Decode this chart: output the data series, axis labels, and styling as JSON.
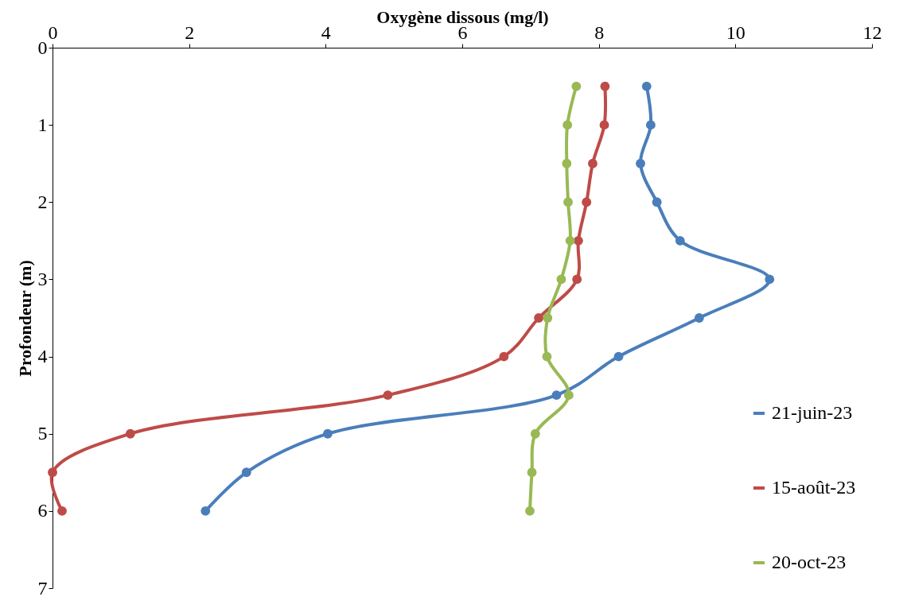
{
  "chart_data": {
    "type": "line",
    "xlabel": "Oxygène dissous (mg/l)",
    "ylabel": "Profondeur (m)",
    "xlim": [
      0,
      12
    ],
    "xticks": [
      0,
      2,
      4,
      6,
      8,
      10,
      12
    ],
    "ylim": [
      7,
      0
    ],
    "yticks": [
      0,
      1,
      2,
      3,
      4,
      5,
      6,
      7
    ],
    "grid": false,
    "legend": "bottom right",
    "marker": "circle",
    "line_style": "solid",
    "series": [
      {
        "name": "21-juin-23",
        "color": "#4a7ebb",
        "x": [
          8.7,
          8.76,
          8.61,
          8.85,
          9.19,
          10.5,
          9.47,
          8.29,
          7.38,
          4.03,
          2.84,
          2.24
        ],
        "values": [
          0.5,
          1,
          1.5,
          2,
          2.5,
          3,
          3.5,
          4,
          4.5,
          5,
          5.5,
          6
        ]
      },
      {
        "name": "15-août-23",
        "color": "#be4b48",
        "x": [
          8.09,
          8.08,
          7.91,
          7.82,
          7.7,
          7.68,
          7.12,
          6.61,
          4.91,
          1.14,
          0.0,
          0.14
        ],
        "values": [
          0.5,
          1,
          1.5,
          2,
          2.5,
          3,
          3.5,
          4,
          4.5,
          5,
          5.5,
          6
        ]
      },
      {
        "name": "20-oct-23",
        "color": "#98b954",
        "x": [
          7.67,
          7.54,
          7.53,
          7.55,
          7.58,
          7.45,
          7.25,
          7.24,
          7.56,
          7.07,
          7.02,
          6.99
        ],
        "values": [
          0.5,
          1,
          1.5,
          2,
          2.5,
          3,
          3.5,
          4,
          4.5,
          5,
          5.5,
          6
        ]
      }
    ]
  }
}
